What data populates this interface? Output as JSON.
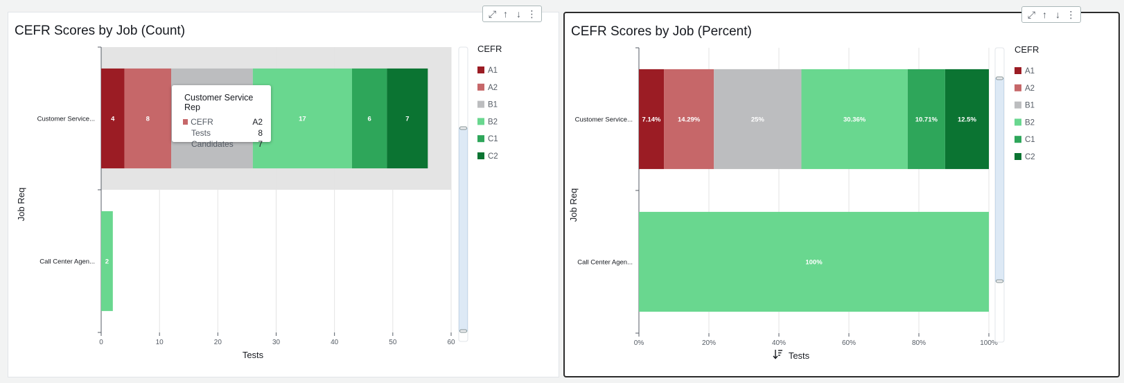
{
  "panels": [
    {
      "id": "count",
      "title": "CEFR Scores by Job (Count)",
      "toolbar_icons": [
        "expand-icon",
        "move-up-icon",
        "move-down-icon",
        "more-options-icon"
      ],
      "chart_data": {
        "type": "bar",
        "orientation": "horizontal",
        "stacked": true,
        "title": "CEFR Scores by Job (Count)",
        "xlabel": "Tests",
        "ylabel": "Job Req",
        "xlim": [
          0,
          60
        ],
        "xticks": [
          "0",
          "10",
          "20",
          "30",
          "40",
          "50",
          "60"
        ],
        "grid": true,
        "legend_title": "CEFR",
        "legend_position": "right",
        "categories": [
          "Customer Service...",
          "Call Center Agen..."
        ],
        "highlighted_category": 0,
        "series": [
          {
            "name": "A1",
            "color": "#9b1c24",
            "values": [
              4,
              0
            ],
            "labels": [
              "4",
              ""
            ]
          },
          {
            "name": "A2",
            "color": "#c66769",
            "values": [
              8,
              0
            ],
            "labels": [
              "8",
              ""
            ]
          },
          {
            "name": "B1",
            "color": "#bcbdbf",
            "values": [
              14,
              0
            ],
            "labels": [
              "",
              ""
            ]
          },
          {
            "name": "B2",
            "color": "#69d78f",
            "values": [
              17,
              2
            ],
            "labels": [
              "17",
              "2"
            ]
          },
          {
            "name": "C1",
            "color": "#2ea65a",
            "values": [
              6,
              0
            ],
            "labels": [
              "6",
              ""
            ]
          },
          {
            "name": "C2",
            "color": "#0b7432",
            "values": [
              7,
              0
            ],
            "labels": [
              "7",
              ""
            ]
          }
        ]
      },
      "tooltip": {
        "title": "Customer Service Rep",
        "rows": [
          {
            "key": "CEFR",
            "value": "A2",
            "swatch": "#c66769"
          },
          {
            "key": "Tests",
            "value": "8"
          },
          {
            "key": "Candidates",
            "value": "7"
          }
        ]
      }
    },
    {
      "id": "percent",
      "title": "CEFR Scores by Job (Percent)",
      "toolbar_icons": [
        "expand-icon",
        "move-up-icon",
        "move-down-icon",
        "more-options-icon"
      ],
      "chart_data": {
        "type": "bar",
        "orientation": "horizontal",
        "stacked": true,
        "percent": true,
        "title": "CEFR Scores by Job (Percent)",
        "xlabel": "Tests",
        "ylabel": "Job Req",
        "xlim": [
          0,
          100
        ],
        "xticks": [
          "0%",
          "20%",
          "40%",
          "60%",
          "80%",
          "100%"
        ],
        "grid": true,
        "sort_icon": true,
        "legend_title": "CEFR",
        "legend_position": "right",
        "categories": [
          "Customer Service...",
          "Call Center Agen..."
        ],
        "series": [
          {
            "name": "A1",
            "color": "#9b1c24",
            "values": [
              7.14,
              0
            ],
            "labels": [
              "7.14%",
              ""
            ]
          },
          {
            "name": "A2",
            "color": "#c66769",
            "values": [
              14.29,
              0
            ],
            "labels": [
              "14.29%",
              ""
            ]
          },
          {
            "name": "B1",
            "color": "#bcbdbf",
            "values": [
              25,
              0
            ],
            "labels": [
              "25%",
              ""
            ]
          },
          {
            "name": "B2",
            "color": "#69d78f",
            "values": [
              30.36,
              100
            ],
            "labels": [
              "30.36%",
              "100%"
            ]
          },
          {
            "name": "C1",
            "color": "#2ea65a",
            "values": [
              10.71,
              0
            ],
            "labels": [
              "10.71%",
              ""
            ]
          },
          {
            "name": "C2",
            "color": "#0b7432",
            "values": [
              12.5,
              0
            ],
            "labels": [
              "12.5%",
              ""
            ]
          }
        ]
      }
    }
  ]
}
